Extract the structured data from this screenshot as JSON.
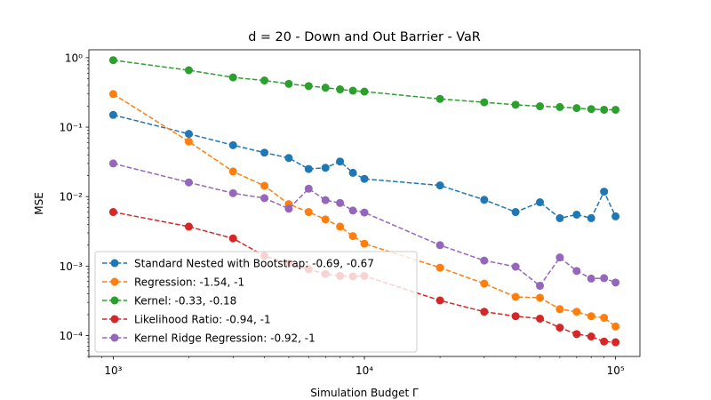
{
  "chart_data": {
    "type": "line",
    "title": "d = 20 - Down and Out Barrier - VaR",
    "xlabel": "Simulation Budget Γ",
    "ylabel": "MSE",
    "xscale": "log",
    "yscale": "log",
    "xlim": [
      800,
      125000
    ],
    "ylim": [
      5e-05,
      1.3
    ],
    "grid": false,
    "legend_position": "lower-left",
    "x_tick_labels": [
      {
        "value": 1000,
        "label": "10³"
      },
      {
        "value": 10000,
        "label": "10⁴"
      },
      {
        "value": 100000,
        "label": "10⁵"
      }
    ],
    "y_tick_labels": [
      {
        "value": 1,
        "label": "10⁰"
      },
      {
        "value": 0.1,
        "label": "10⁻¹"
      },
      {
        "value": 0.01,
        "label": "10⁻²"
      },
      {
        "value": 0.001,
        "label": "10⁻³"
      },
      {
        "value": 0.0001,
        "label": "10⁻⁴"
      }
    ],
    "x": [
      1000,
      2000,
      3000,
      4000,
      5000,
      6000,
      7000,
      8000,
      9000,
      10000,
      20000,
      30000,
      40000,
      50000,
      60000,
      70000,
      80000,
      90000,
      100000
    ],
    "series": [
      {
        "name": "Standard Nested with Bootstrap: -0.69, -0.67",
        "color": "#1f77b4",
        "values": [
          0.15,
          0.08,
          0.055,
          0.043,
          0.036,
          0.025,
          0.026,
          0.032,
          0.022,
          0.018,
          0.0145,
          0.009,
          0.006,
          0.0083,
          0.0049,
          0.0055,
          0.0049,
          0.0118,
          0.0052
        ]
      },
      {
        "name": "Regression: -1.54, -1",
        "color": "#ff7f0e",
        "values": [
          0.3,
          0.062,
          0.023,
          0.0143,
          0.0078,
          0.006,
          0.0047,
          0.0037,
          0.0027,
          0.0021,
          0.00095,
          0.00056,
          0.00036,
          0.00035,
          0.00024,
          0.00022,
          0.00019,
          0.00018,
          0.000135
        ]
      },
      {
        "name": "Kernel: -0.33, -0.18",
        "color": "#2ca02c",
        "values": [
          0.92,
          0.66,
          0.52,
          0.47,
          0.42,
          0.39,
          0.37,
          0.35,
          0.335,
          0.325,
          0.255,
          0.228,
          0.21,
          0.2,
          0.195,
          0.188,
          0.182,
          0.178,
          0.178
        ]
      },
      {
        "name": "Likelihood Ratio: -0.94, -1",
        "color": "#d62728",
        "values": [
          0.006,
          0.0037,
          0.0025,
          0.0014,
          0.0011,
          0.0009,
          0.00077,
          0.00072,
          0.00071,
          0.00072,
          0.00032,
          0.00022,
          0.00019,
          0.000175,
          0.00013,
          0.000105,
          9.7e-05,
          8.2e-05,
          8e-05
        ]
      },
      {
        "name": "Kernel Ridge Regression: -0.92, -1",
        "color": "#9467bd",
        "values": [
          0.03,
          0.016,
          0.0112,
          0.0095,
          0.0067,
          0.013,
          0.0089,
          0.0081,
          0.0063,
          0.0059,
          0.002,
          0.0012,
          0.00098,
          0.00052,
          0.00133,
          0.00085,
          0.00066,
          0.00067,
          0.00058
        ]
      }
    ]
  }
}
